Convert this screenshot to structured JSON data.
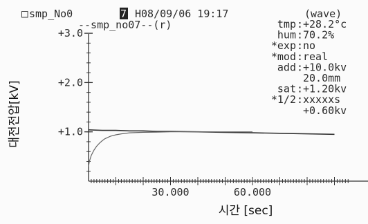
{
  "header": {
    "box_glyph": "□",
    "sample_prefix": "smp_No0",
    "sample_hilite": "7",
    "datetime": "H08/09/06 19:17",
    "mode": "(wave)",
    "subtitle": "--smp_no07--(r)"
  },
  "params": [
    {
      "key": "tmp",
      "value": "+28.2°c"
    },
    {
      "key": "hum",
      "value": " 70.2%"
    },
    {
      "key": "*exp",
      "value": "no"
    },
    {
      "key": "*mod",
      "value": "real"
    },
    {
      "key": "add",
      "value": "+10.0kv"
    },
    {
      "key": "",
      "value": "20.0mm"
    },
    {
      "key": "sat",
      "value": "+1.20kv"
    },
    {
      "key": "*1/2",
      "value": "xxxxxs"
    },
    {
      "key": "",
      "value": "+0.60kv"
    }
  ],
  "chart_data": {
    "type": "line",
    "xlabel": "시간 [sec]",
    "ylabel": "대전전압[kV]",
    "x_tick_labels": [
      "30.000",
      "60.000"
    ],
    "x_ticks": [
      30,
      60
    ],
    "y_tick_labels": [
      "+3.0",
      "+2.0",
      "+1.0"
    ],
    "y_ticks": [
      3.0,
      2.0,
      1.0
    ],
    "xlim": [
      0,
      95
    ],
    "ylim": [
      0,
      3.0
    ],
    "grid": false,
    "series": [
      {
        "x": [
          0,
          5,
          10,
          15,
          20,
          25,
          30,
          40,
          50,
          60,
          70,
          80,
          90
        ],
        "y": [
          1.04,
          1.03,
          1.03,
          1.02,
          1.02,
          1.01,
          1.01,
          1.0,
          0.99,
          0.98,
          0.97,
          0.96,
          0.95
        ]
      },
      {
        "x": [
          0,
          0.3,
          1,
          2,
          3,
          4,
          5,
          6,
          8,
          10,
          12,
          15,
          20,
          25,
          30,
          40,
          50,
          60
        ],
        "y": [
          0.3,
          0.4,
          0.52,
          0.63,
          0.71,
          0.77,
          0.82,
          0.86,
          0.91,
          0.94,
          0.96,
          0.98,
          0.99,
          0.995,
          1.0,
          1.0,
          1.0,
          1.0
        ]
      }
    ]
  }
}
